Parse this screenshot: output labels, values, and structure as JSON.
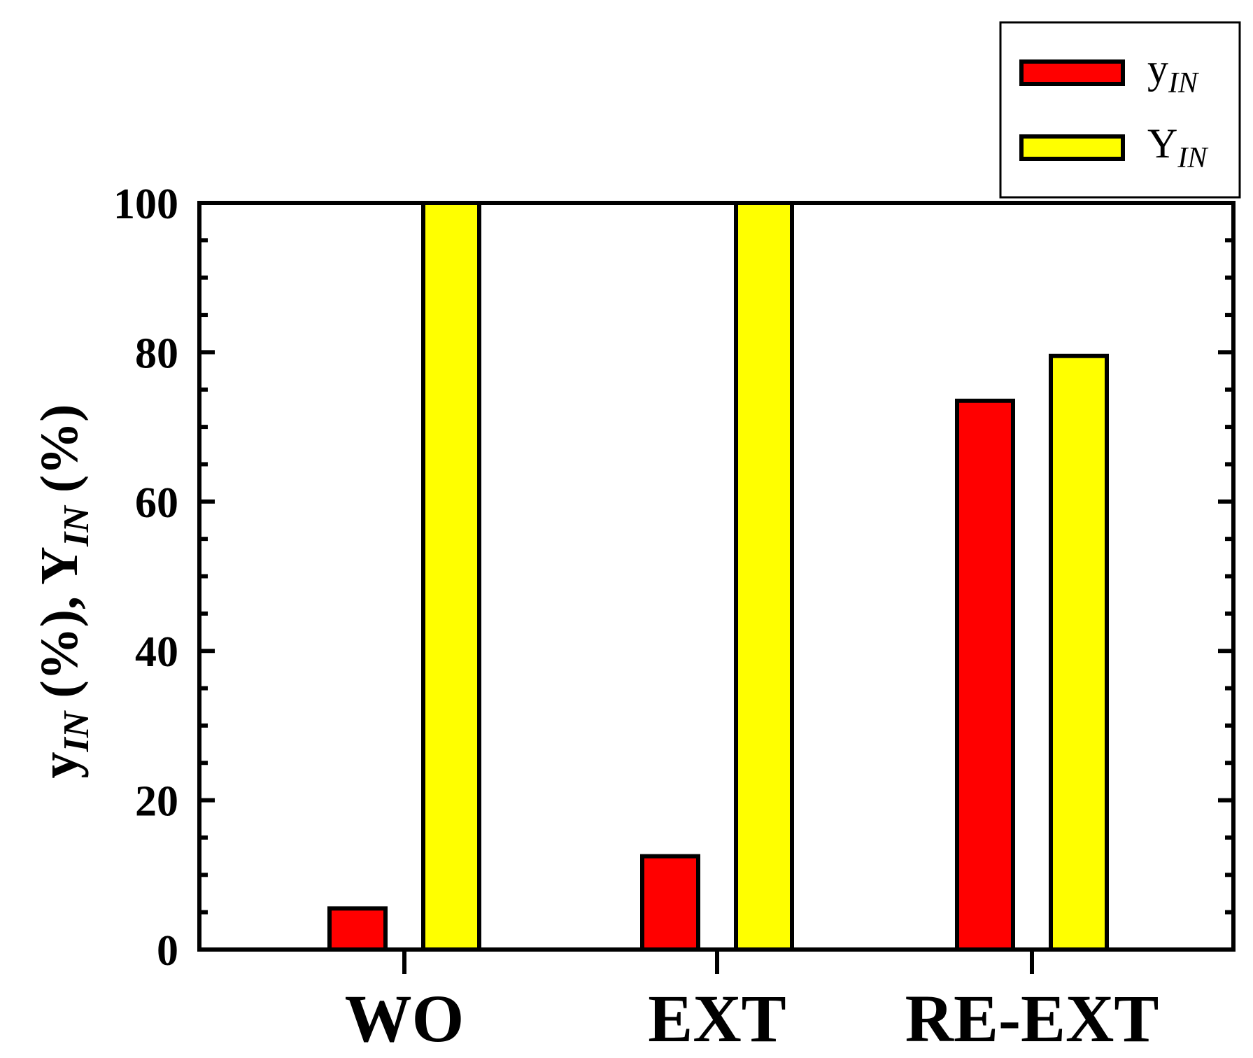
{
  "chart_data": {
    "type": "bar",
    "categories": [
      "WO",
      "EXT",
      "RE-EXT"
    ],
    "series": [
      {
        "name_base": "y",
        "name_sub": "IN",
        "color": "#ff0000",
        "values": [
          5.5,
          12.5,
          73.5
        ]
      },
      {
        "name_base": "Y",
        "name_sub": "IN",
        "color": "#ffff00",
        "values": [
          100,
          100,
          79.5
        ]
      }
    ],
    "ylabel": {
      "part1_base": "y",
      "part1_sub": "IN",
      "part1_tail": " (%), ",
      "part2_base": "Y",
      "part2_sub": "IN",
      "part2_tail": " (%)"
    },
    "ylim": [
      0,
      100
    ],
    "yticks": [
      0,
      20,
      40,
      60,
      80,
      100
    ],
    "ytick_labels": [
      "0",
      "20",
      "40",
      "60",
      "80",
      "100"
    ],
    "grid": false,
    "legend_position": "top-right, outside plot"
  }
}
